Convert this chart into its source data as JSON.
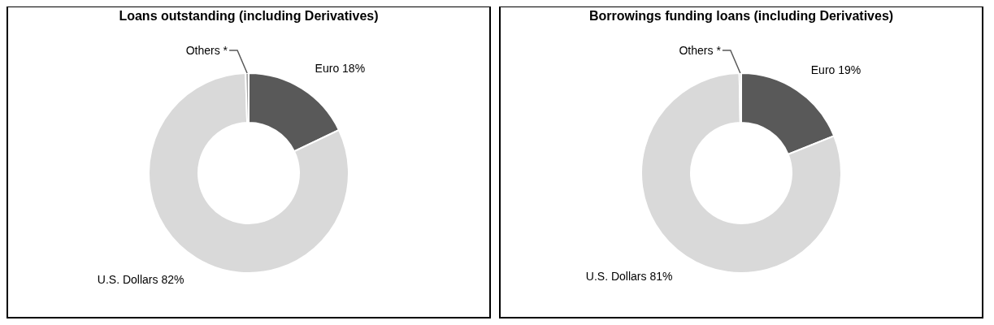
{
  "chart_data": [
    {
      "type": "donut",
      "title": "Loans outstanding (including Derivatives)",
      "categories": [
        "Euro",
        "U.S. Dollars",
        "Others *"
      ],
      "values": [
        18,
        82,
        0.5
      ],
      "value_labels": [
        "18%",
        "82%",
        null
      ],
      "colors": [
        "#595959",
        "#d9d9d9",
        "#a6a6a6"
      ],
      "legend": false
    },
    {
      "type": "donut",
      "title": "Borrowings funding loans (including Derivatives)",
      "categories": [
        "Euro",
        "U.S. Dollars",
        "Others *"
      ],
      "values": [
        19,
        81,
        0.3
      ],
      "value_labels": [
        "19%",
        "81%",
        null
      ],
      "colors": [
        "#595959",
        "#d9d9d9",
        "#a6a6a6"
      ],
      "legend": false
    }
  ]
}
